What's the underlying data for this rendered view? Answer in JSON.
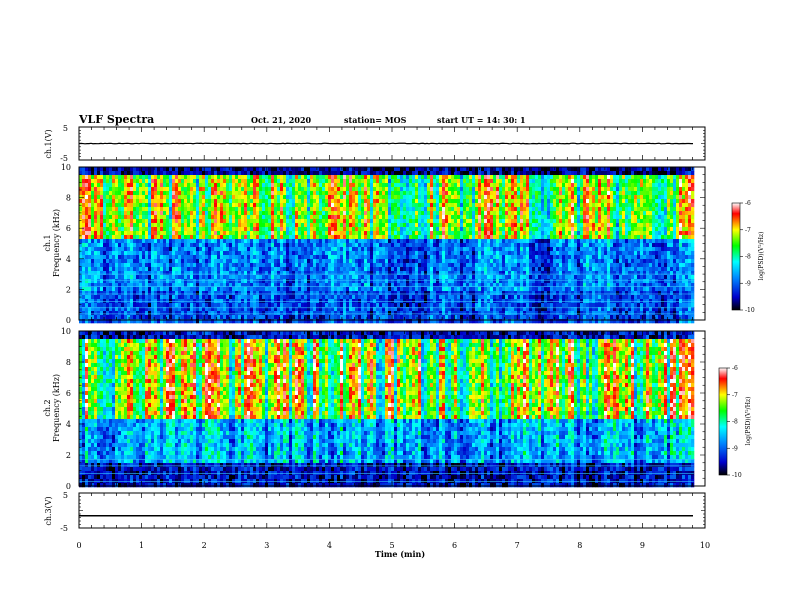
{
  "header": {
    "title": "VLF Spectra",
    "date": "Oct. 21, 2020",
    "station": "station= MOS",
    "start": "start UT =  14: 30: 1"
  },
  "chart_data": [
    {
      "type": "line",
      "panel": "ch1-waveform",
      "ylabel": "ch.1(V)",
      "ylim": [
        -5,
        5
      ],
      "yticks": [
        "5",
        "-5"
      ],
      "xlim": [
        0,
        10
      ],
      "trace_level": 0,
      "trace_extent": [
        0,
        9.82
      ]
    },
    {
      "type": "heatmap",
      "panel": "ch1-spectrogram",
      "ylabel": "ch.1\nFrequency (kHz)",
      "ylim": [
        0,
        10
      ],
      "yticks": [
        "10",
        "8",
        "6",
        "4",
        "2",
        "0"
      ],
      "xlim": [
        0,
        10
      ],
      "data_extent": [
        0,
        9.82
      ],
      "colorbar": {
        "label": "log(PSD)(V²/Hz)",
        "ticks": [
          "-6",
          "-7",
          "-8",
          "-9",
          "-10"
        ],
        "range": [
          -10,
          -6
        ]
      }
    },
    {
      "type": "heatmap",
      "panel": "ch2-spectrogram",
      "ylabel": "ch.2\nFrequency (kHz)",
      "ylim": [
        0,
        10
      ],
      "yticks": [
        "10",
        "8",
        "6",
        "4",
        "2",
        "0"
      ],
      "xlim": [
        0,
        10
      ],
      "data_extent": [
        0,
        9.82
      ],
      "colorbar": {
        "label": "log(PSD)(V²/Hz)",
        "ticks": [
          "-6",
          "-7",
          "-8",
          "-9",
          "-10"
        ],
        "range": [
          -10,
          -6
        ]
      }
    },
    {
      "type": "line",
      "panel": "ch3-waveform",
      "ylabel": "ch.3(V)",
      "ylim": [
        -5,
        5
      ],
      "yticks": [
        "5",
        "-5"
      ],
      "xlim": [
        0,
        10
      ],
      "trace_level": -1.5,
      "trace_extent": [
        0,
        9.82
      ]
    }
  ],
  "x_axis": {
    "label": "Time (min)",
    "ticks": [
      "0",
      "1",
      "2",
      "3",
      "4",
      "5",
      "6",
      "7",
      "8",
      "9",
      "10"
    ]
  },
  "colors": {
    "background": "#ffffff",
    "axis": "#000000",
    "colormap": [
      "#000000",
      "#0000ff",
      "#00ffff",
      "#00ff00",
      "#ffff00",
      "#ff0000",
      "#ffffff"
    ]
  }
}
